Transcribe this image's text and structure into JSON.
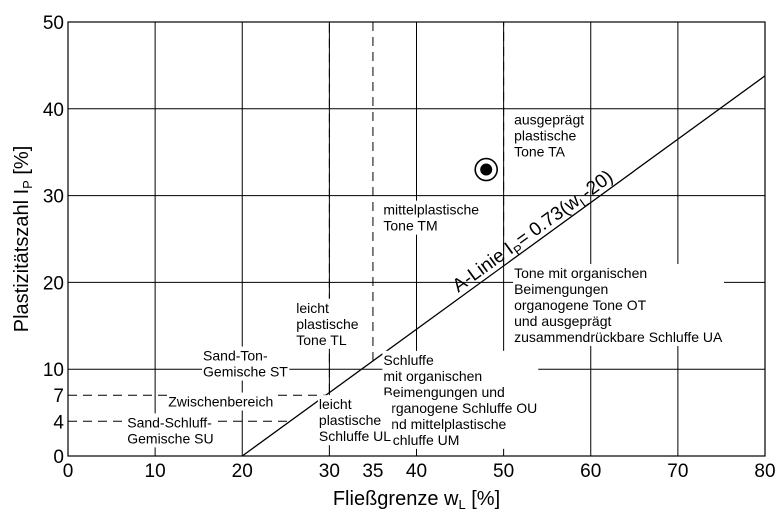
{
  "chart_data": {
    "type": "scatter",
    "xlabel": "Fließgrenze w",
    "xlabel_sub": "L",
    "xlabel_unit": " [%]",
    "ylabel": "Plastizitätszahl I",
    "ylabel_sub": "P",
    "ylabel_unit": " [%]",
    "xlim": [
      0,
      80
    ],
    "ylim": [
      0,
      50
    ],
    "x_ticks": [
      0,
      10,
      20,
      30,
      35,
      40,
      50,
      60,
      70,
      80
    ],
    "x_tick_labels": [
      "0",
      "10",
      "20",
      "30",
      "35",
      "40",
      "50",
      "60",
      "70",
      "80"
    ],
    "y_ticks": [
      0,
      4,
      7,
      10,
      20,
      30,
      40,
      50
    ],
    "y_tick_labels": [
      "0",
      "4",
      "7",
      "10",
      "20",
      "30",
      "40",
      "50"
    ],
    "grid": true,
    "a_line": {
      "equation": "A-Linie I",
      "equation_sub": "P",
      "equation_rest": "= 0.73(w",
      "equation_sub2": "L",
      "equation_end": "-20)",
      "slope": 0.73,
      "offset": 20,
      "x_range": [
        20,
        80
      ]
    },
    "boundaries_dashed": {
      "vertical": [
        30,
        35,
        50
      ],
      "horizontal": [
        4,
        7
      ]
    },
    "point": {
      "x": 48,
      "y": 33,
      "marker": "circled-dot"
    },
    "regions": [
      {
        "lines": [
          "ausgeprägt",
          "plastische",
          "Tone TA"
        ],
        "x": 51.2,
        "y": 38.2
      },
      {
        "lines": [
          "mittelplastische",
          "Tone TM"
        ],
        "x": 36.2,
        "y": 27.8
      },
      {
        "lines": [
          "Tone mit organischen",
          "Beimengungen",
          "organogene Tone OT",
          "und ausgeprägt",
          "zusammendrückbare Schluffe UA"
        ],
        "x": 51.2,
        "y": 20.5
      },
      {
        "lines": [
          "leicht",
          "plastische",
          "Tone TL"
        ],
        "x": 26.2,
        "y": 16.5
      },
      {
        "lines": [
          "Sand-Ton-",
          "Gemische ST"
        ],
        "x": 15.5,
        "y": 11
      },
      {
        "lines": [
          "Schluffe",
          "mit organischen",
          "Beimengungen und",
          "organogene Schluffe OU",
          "und mittelplastische",
          "Schluffe UM"
        ],
        "x": 36.2,
        "y": 10.5
      },
      {
        "lines": [
          "Zwischenbereich"
        ],
        "x": 11.5,
        "y": 5.7
      },
      {
        "lines": [
          "leicht",
          "plastische",
          "Schluffe UL"
        ],
        "x": 28.8,
        "y": 5.4
      },
      {
        "lines": [
          "Sand-Schluff-",
          "Gemische SU"
        ],
        "x": 6.8,
        "y": 3.3
      }
    ]
  }
}
